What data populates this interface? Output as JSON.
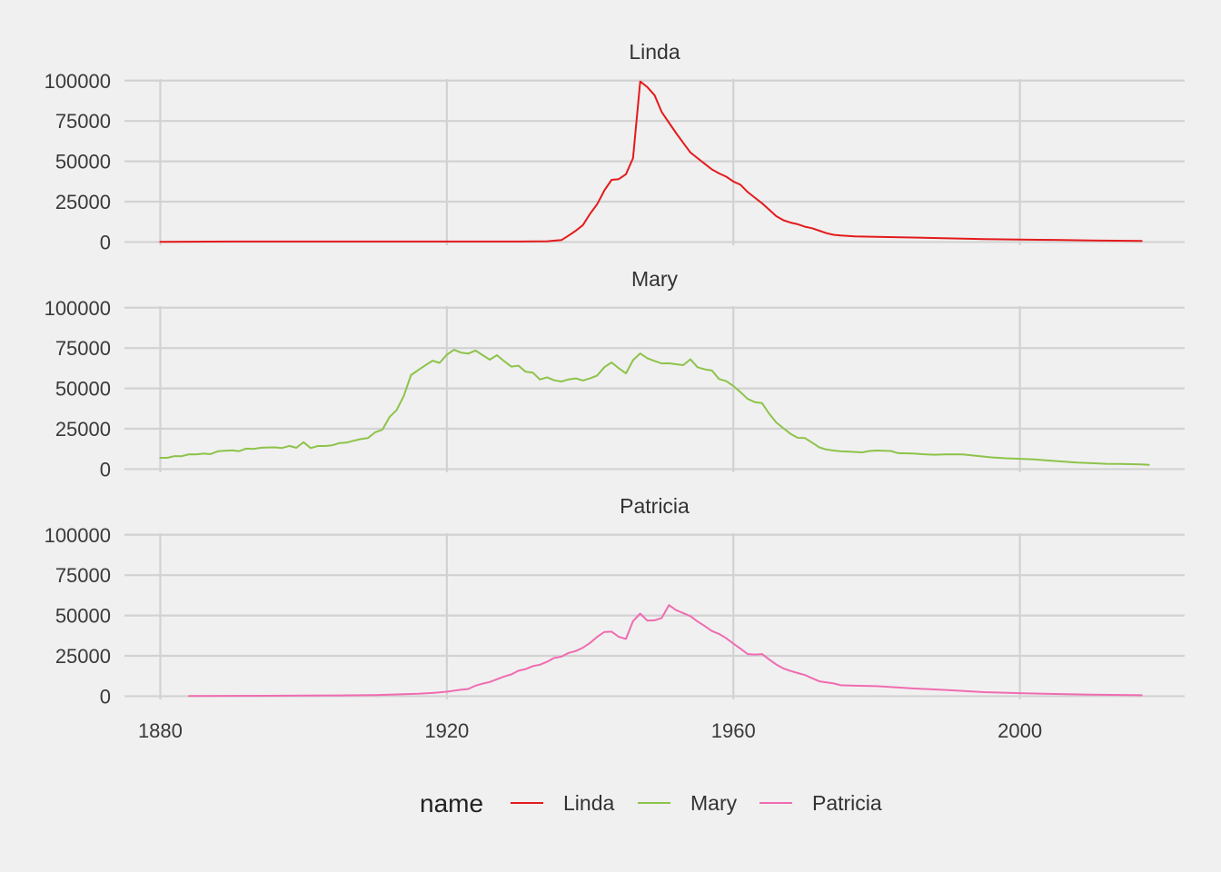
{
  "chart_data": {
    "type": "line",
    "facet_by": "name",
    "x_ticks": [
      1880,
      1920,
      1960,
      2000
    ],
    "y_ticks": [
      0,
      25000,
      50000,
      75000,
      100000
    ],
    "xlim": [
      1875,
      2023
    ],
    "ylim": [
      -2000,
      101000
    ],
    "grid": true,
    "legend": {
      "title": "name",
      "position": "bottom"
    },
    "colors": {
      "Linda": "#e41a1c",
      "Mary": "#8dc34a",
      "Patricia": "#ef6cb0"
    },
    "series": [
      {
        "name": "Linda",
        "points": [
          [
            1880,
            150
          ],
          [
            1890,
            300
          ],
          [
            1900,
            300
          ],
          [
            1910,
            300
          ],
          [
            1920,
            300
          ],
          [
            1930,
            300
          ],
          [
            1934,
            500
          ],
          [
            1936,
            1200
          ],
          [
            1937,
            4000
          ],
          [
            1938,
            7000
          ],
          [
            1939,
            10500
          ],
          [
            1940,
            17500
          ],
          [
            1941,
            23500
          ],
          [
            1942,
            32000
          ],
          [
            1943,
            38500
          ],
          [
            1944,
            39000
          ],
          [
            1945,
            42000
          ],
          [
            1946,
            52000
          ],
          [
            1947,
            99500
          ],
          [
            1948,
            96000
          ],
          [
            1949,
            91000
          ],
          [
            1950,
            80500
          ],
          [
            1951,
            74000
          ],
          [
            1952,
            67500
          ],
          [
            1953,
            61500
          ],
          [
            1954,
            55500
          ],
          [
            1955,
            52000
          ],
          [
            1956,
            48500
          ],
          [
            1957,
            45000
          ],
          [
            1958,
            42500
          ],
          [
            1959,
            40500
          ],
          [
            1960,
            37500
          ],
          [
            1961,
            35500
          ],
          [
            1962,
            31000
          ],
          [
            1963,
            27500
          ],
          [
            1964,
            24000
          ],
          [
            1965,
            20000
          ],
          [
            1966,
            16000
          ],
          [
            1967,
            13500
          ],
          [
            1968,
            12000
          ],
          [
            1969,
            11000
          ],
          [
            1970,
            9500
          ],
          [
            1971,
            8500
          ],
          [
            1972,
            7000
          ],
          [
            1973,
            5500
          ],
          [
            1974,
            4500
          ],
          [
            1975,
            4000
          ],
          [
            1977,
            3500
          ],
          [
            1980,
            3200
          ],
          [
            1985,
            2800
          ],
          [
            1990,
            2300
          ],
          [
            1995,
            1800
          ],
          [
            2000,
            1500
          ],
          [
            2005,
            1300
          ],
          [
            2010,
            1000
          ],
          [
            2017,
            700
          ]
        ]
      },
      {
        "name": "Mary",
        "points": [
          [
            1880,
            7000
          ],
          [
            1881,
            7000
          ],
          [
            1882,
            8100
          ],
          [
            1883,
            8000
          ],
          [
            1884,
            9200
          ],
          [
            1885,
            9100
          ],
          [
            1886,
            9600
          ],
          [
            1887,
            9300
          ],
          [
            1888,
            11000
          ],
          [
            1889,
            11400
          ],
          [
            1890,
            11600
          ],
          [
            1891,
            11100
          ],
          [
            1892,
            12700
          ],
          [
            1893,
            12500
          ],
          [
            1894,
            13200
          ],
          [
            1895,
            13400
          ],
          [
            1896,
            13500
          ],
          [
            1897,
            13100
          ],
          [
            1898,
            14400
          ],
          [
            1899,
            13200
          ],
          [
            1900,
            16700
          ],
          [
            1901,
            13000
          ],
          [
            1902,
            14300
          ],
          [
            1903,
            14300
          ],
          [
            1904,
            14800
          ],
          [
            1905,
            16100
          ],
          [
            1906,
            16400
          ],
          [
            1907,
            17600
          ],
          [
            1908,
            18600
          ],
          [
            1909,
            19300
          ],
          [
            1910,
            22800
          ],
          [
            1911,
            24400
          ],
          [
            1912,
            32300
          ],
          [
            1913,
            36600
          ],
          [
            1914,
            45400
          ],
          [
            1915,
            58200
          ],
          [
            1916,
            61400
          ],
          [
            1917,
            64300
          ],
          [
            1918,
            67200
          ],
          [
            1919,
            65800
          ],
          [
            1920,
            70900
          ],
          [
            1921,
            73900
          ],
          [
            1922,
            72200
          ],
          [
            1923,
            71600
          ],
          [
            1924,
            73500
          ],
          [
            1925,
            70600
          ],
          [
            1926,
            67800
          ],
          [
            1927,
            70600
          ],
          [
            1928,
            66900
          ],
          [
            1929,
            63500
          ],
          [
            1930,
            64100
          ],
          [
            1931,
            60300
          ],
          [
            1932,
            59800
          ],
          [
            1933,
            55500
          ],
          [
            1934,
            56900
          ],
          [
            1935,
            55000
          ],
          [
            1936,
            54300
          ],
          [
            1937,
            55600
          ],
          [
            1938,
            56200
          ],
          [
            1939,
            54900
          ],
          [
            1940,
            56200
          ],
          [
            1941,
            58000
          ],
          [
            1942,
            63200
          ],
          [
            1943,
            66100
          ],
          [
            1944,
            62500
          ],
          [
            1945,
            59300
          ],
          [
            1946,
            67500
          ],
          [
            1947,
            71700
          ],
          [
            1948,
            68700
          ],
          [
            1949,
            67000
          ],
          [
            1950,
            65500
          ],
          [
            1951,
            65600
          ],
          [
            1952,
            65000
          ],
          [
            1953,
            64400
          ],
          [
            1954,
            68000
          ],
          [
            1955,
            63100
          ],
          [
            1956,
            61800
          ],
          [
            1957,
            61100
          ],
          [
            1958,
            55800
          ],
          [
            1959,
            54500
          ],
          [
            1960,
            51500
          ],
          [
            1961,
            47700
          ],
          [
            1962,
            43500
          ],
          [
            1963,
            41500
          ],
          [
            1964,
            40900
          ],
          [
            1965,
            34300
          ],
          [
            1966,
            28900
          ],
          [
            1967,
            25300
          ],
          [
            1968,
            21800
          ],
          [
            1969,
            19400
          ],
          [
            1970,
            19200
          ],
          [
            1971,
            16400
          ],
          [
            1972,
            13500
          ],
          [
            1973,
            12100
          ],
          [
            1974,
            11500
          ],
          [
            1975,
            11000
          ],
          [
            1976,
            10900
          ],
          [
            1977,
            10600
          ],
          [
            1978,
            10400
          ],
          [
            1979,
            11200
          ],
          [
            1980,
            11500
          ],
          [
            1982,
            11200
          ],
          [
            1983,
            9900
          ],
          [
            1985,
            9700
          ],
          [
            1987,
            9100
          ],
          [
            1988,
            8900
          ],
          [
            1990,
            9200
          ],
          [
            1992,
            9100
          ],
          [
            1994,
            8200
          ],
          [
            1996,
            7300
          ],
          [
            1998,
            6700
          ],
          [
            2000,
            6400
          ],
          [
            2002,
            6000
          ],
          [
            2004,
            5300
          ],
          [
            2006,
            4700
          ],
          [
            2008,
            4100
          ],
          [
            2010,
            3700
          ],
          [
            2012,
            3300
          ],
          [
            2014,
            3200
          ],
          [
            2017,
            2900
          ],
          [
            2018,
            2600
          ]
        ]
      },
      {
        "name": "Patricia",
        "points": [
          [
            1884,
            100
          ],
          [
            1890,
            200
          ],
          [
            1895,
            250
          ],
          [
            1900,
            400
          ],
          [
            1905,
            500
          ],
          [
            1910,
            700
          ],
          [
            1914,
            1200
          ],
          [
            1916,
            1500
          ],
          [
            1918,
            2000
          ],
          [
            1920,
            2800
          ],
          [
            1922,
            4000
          ],
          [
            1923,
            4500
          ],
          [
            1924,
            6500
          ],
          [
            1925,
            7800
          ],
          [
            1926,
            8800
          ],
          [
            1927,
            10500
          ],
          [
            1928,
            12200
          ],
          [
            1929,
            13500
          ],
          [
            1930,
            15800
          ],
          [
            1931,
            16800
          ],
          [
            1932,
            18600
          ],
          [
            1933,
            19500
          ],
          [
            1934,
            21300
          ],
          [
            1935,
            23700
          ],
          [
            1936,
            24500
          ],
          [
            1937,
            26800
          ],
          [
            1938,
            28000
          ],
          [
            1939,
            30000
          ],
          [
            1940,
            33000
          ],
          [
            1941,
            36800
          ],
          [
            1942,
            39800
          ],
          [
            1943,
            40000
          ],
          [
            1944,
            36800
          ],
          [
            1945,
            35500
          ],
          [
            1946,
            46500
          ],
          [
            1947,
            51200
          ],
          [
            1948,
            46800
          ],
          [
            1949,
            47000
          ],
          [
            1950,
            48500
          ],
          [
            1951,
            56400
          ],
          [
            1952,
            53300
          ],
          [
            1953,
            51500
          ],
          [
            1954,
            49600
          ],
          [
            1955,
            46300
          ],
          [
            1956,
            43500
          ],
          [
            1957,
            40400
          ],
          [
            1958,
            38600
          ],
          [
            1959,
            35900
          ],
          [
            1960,
            32600
          ],
          [
            1961,
            29400
          ],
          [
            1962,
            26100
          ],
          [
            1963,
            25800
          ],
          [
            1964,
            26100
          ],
          [
            1965,
            22700
          ],
          [
            1966,
            19600
          ],
          [
            1967,
            17200
          ],
          [
            1968,
            15600
          ],
          [
            1969,
            14300
          ],
          [
            1970,
            13100
          ],
          [
            1971,
            11100
          ],
          [
            1972,
            9200
          ],
          [
            1973,
            8600
          ],
          [
            1974,
            7900
          ],
          [
            1975,
            6800
          ],
          [
            1977,
            6500
          ],
          [
            1980,
            6200
          ],
          [
            1985,
            4800
          ],
          [
            1990,
            3800
          ],
          [
            1995,
            2500
          ],
          [
            2000,
            1900
          ],
          [
            2005,
            1400
          ],
          [
            2010,
            900
          ],
          [
            2017,
            600
          ]
        ]
      }
    ]
  }
}
